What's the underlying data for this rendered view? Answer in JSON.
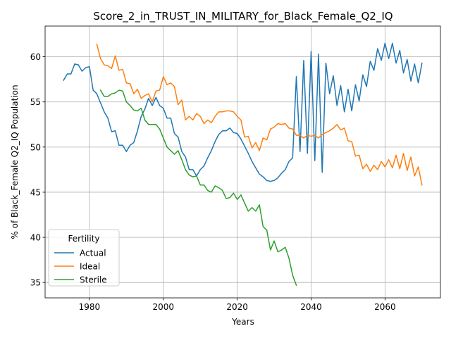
{
  "chart_data": {
    "type": "line",
    "title": "Score_2_in_TRUST_IN_MILITARY_for_Black_Female_Q2_IQ",
    "xlabel": "Years",
    "ylabel": "% of Black_Female Q2_IQ Population",
    "xlim": [
      1968,
      2075
    ],
    "ylim": [
      33.3,
      63.4
    ],
    "x_ticks": [
      1980,
      2000,
      2020,
      2040,
      2060
    ],
    "y_ticks": [
      35,
      40,
      45,
      50,
      55,
      60
    ],
    "grid": true,
    "legend": {
      "title": "Fertility",
      "placement": "lower-left"
    },
    "series": [
      {
        "name": "Actual",
        "color": "#1f77b4",
        "points": [
          [
            1973,
            57.4
          ],
          [
            1974,
            58.1
          ],
          [
            1975,
            58.1
          ],
          [
            1976,
            59.2
          ],
          [
            1977,
            59.1
          ],
          [
            1978,
            58.4
          ],
          [
            1979,
            58.8
          ],
          [
            1980,
            58.9
          ],
          [
            1981,
            56.3
          ],
          [
            1982,
            55.9
          ],
          [
            1983,
            54.9
          ],
          [
            1984,
            53.9
          ],
          [
            1985,
            53.2
          ],
          [
            1986,
            51.7
          ],
          [
            1987,
            51.8
          ],
          [
            1988,
            50.2
          ],
          [
            1989,
            50.2
          ],
          [
            1990,
            49.5
          ],
          [
            1991,
            50.2
          ],
          [
            1992,
            50.5
          ],
          [
            1993,
            51.8
          ],
          [
            1994,
            53.4
          ],
          [
            1995,
            54.2
          ],
          [
            1996,
            55.4
          ],
          [
            1997,
            54.6
          ],
          [
            1998,
            55.5
          ],
          [
            1999,
            54.6
          ],
          [
            2000,
            54.3
          ],
          [
            2001,
            53.2
          ],
          [
            2002,
            53.2
          ],
          [
            2003,
            51.5
          ],
          [
            2004,
            51.1
          ],
          [
            2005,
            49.5
          ],
          [
            2006,
            48.9
          ],
          [
            2007,
            47.5
          ],
          [
            2008,
            47.5
          ],
          [
            2009,
            46.8
          ],
          [
            2010,
            47.5
          ],
          [
            2011,
            47.9
          ],
          [
            2012,
            48.8
          ],
          [
            2013,
            49.6
          ],
          [
            2014,
            50.6
          ],
          [
            2015,
            51.4
          ],
          [
            2016,
            51.8
          ],
          [
            2017,
            51.8
          ],
          [
            2018,
            52.1
          ],
          [
            2019,
            51.6
          ],
          [
            2020,
            51.5
          ],
          [
            2021,
            50.9
          ],
          [
            2022,
            50.1
          ],
          [
            2023,
            49.3
          ],
          [
            2024,
            48.4
          ],
          [
            2025,
            47.7
          ],
          [
            2026,
            47.0
          ],
          [
            2027,
            46.7
          ],
          [
            2028,
            46.3
          ],
          [
            2029,
            46.2
          ],
          [
            2030,
            46.3
          ],
          [
            2031,
            46.6
          ],
          [
            2032,
            47.1
          ],
          [
            2033,
            47.5
          ],
          [
            2034,
            48.4
          ],
          [
            2035,
            48.8
          ],
          [
            2036,
            57.8
          ],
          [
            2037,
            49.5
          ],
          [
            2038,
            59.6
          ],
          [
            2039,
            49.3
          ],
          [
            2040,
            60.6
          ],
          [
            2041,
            48.5
          ],
          [
            2042,
            60.3
          ],
          [
            2043,
            47.2
          ],
          [
            2044,
            59.3
          ],
          [
            2045,
            55.9
          ],
          [
            2046,
            57.9
          ],
          [
            2047,
            54.6
          ],
          [
            2048,
            56.8
          ],
          [
            2049,
            53.9
          ],
          [
            2050,
            56.4
          ],
          [
            2051,
            54.0
          ],
          [
            2052,
            56.9
          ],
          [
            2053,
            55.1
          ],
          [
            2054,
            58.0
          ],
          [
            2055,
            56.7
          ],
          [
            2056,
            59.5
          ],
          [
            2057,
            58.5
          ],
          [
            2058,
            60.9
          ],
          [
            2059,
            59.6
          ],
          [
            2060,
            61.5
          ],
          [
            2061,
            59.8
          ],
          [
            2062,
            61.5
          ],
          [
            2063,
            59.3
          ],
          [
            2064,
            60.7
          ],
          [
            2065,
            58.2
          ],
          [
            2066,
            59.7
          ],
          [
            2067,
            57.3
          ],
          [
            2068,
            59.2
          ],
          [
            2069,
            57.1
          ],
          [
            2070,
            59.3
          ]
        ]
      },
      {
        "name": "Ideal",
        "color": "#ff7f0e",
        "points": [
          [
            1982,
            61.4
          ],
          [
            1983,
            59.8
          ],
          [
            1984,
            59.1
          ],
          [
            1985,
            59.0
          ],
          [
            1986,
            58.7
          ],
          [
            1987,
            60.1
          ],
          [
            1988,
            58.5
          ],
          [
            1989,
            58.6
          ],
          [
            1990,
            57.1
          ],
          [
            1991,
            57.0
          ],
          [
            1992,
            55.9
          ],
          [
            1993,
            56.4
          ],
          [
            1994,
            55.4
          ],
          [
            1995,
            55.7
          ],
          [
            1996,
            55.9
          ],
          [
            1997,
            55.0
          ],
          [
            1998,
            56.2
          ],
          [
            1999,
            56.3
          ],
          [
            2000,
            57.8
          ],
          [
            2001,
            56.9
          ],
          [
            2002,
            57.1
          ],
          [
            2003,
            56.7
          ],
          [
            2004,
            54.7
          ],
          [
            2005,
            55.2
          ],
          [
            2006,
            53.0
          ],
          [
            2007,
            53.4
          ],
          [
            2008,
            53.0
          ],
          [
            2009,
            53.7
          ],
          [
            2010,
            53.4
          ],
          [
            2011,
            52.6
          ],
          [
            2012,
            53.0
          ],
          [
            2013,
            52.7
          ],
          [
            2014,
            53.4
          ],
          [
            2015,
            53.9
          ],
          [
            2016,
            53.9
          ],
          [
            2017,
            54.0
          ],
          [
            2018,
            54.0
          ],
          [
            2019,
            53.9
          ],
          [
            2020,
            53.4
          ],
          [
            2021,
            53.0
          ],
          [
            2022,
            51.1
          ],
          [
            2023,
            51.2
          ],
          [
            2024,
            49.9
          ],
          [
            2025,
            50.5
          ],
          [
            2026,
            49.6
          ],
          [
            2027,
            51.0
          ],
          [
            2028,
            50.8
          ],
          [
            2029,
            52.0
          ],
          [
            2030,
            52.2
          ],
          [
            2031,
            52.6
          ],
          [
            2032,
            52.5
          ],
          [
            2033,
            52.6
          ],
          [
            2034,
            52.1
          ],
          [
            2035,
            52.0
          ],
          [
            2036,
            51.3
          ],
          [
            2037,
            51.3
          ],
          [
            2038,
            51.0
          ],
          [
            2039,
            51.3
          ],
          [
            2040,
            51.2
          ],
          [
            2041,
            51.3
          ],
          [
            2042,
            51.0
          ],
          [
            2043,
            51.4
          ],
          [
            2044,
            51.6
          ],
          [
            2045,
            51.8
          ],
          [
            2046,
            52.1
          ],
          [
            2047,
            52.5
          ],
          [
            2048,
            51.9
          ],
          [
            2049,
            52.1
          ],
          [
            2050,
            50.7
          ],
          [
            2051,
            50.6
          ],
          [
            2052,
            49.0
          ],
          [
            2053,
            49.1
          ],
          [
            2054,
            47.6
          ],
          [
            2055,
            48.1
          ],
          [
            2056,
            47.3
          ],
          [
            2057,
            48.0
          ],
          [
            2058,
            47.5
          ],
          [
            2059,
            48.4
          ],
          [
            2060,
            47.8
          ],
          [
            2061,
            48.6
          ],
          [
            2062,
            47.7
          ],
          [
            2063,
            49.1
          ],
          [
            2064,
            47.6
          ],
          [
            2065,
            49.3
          ],
          [
            2066,
            47.4
          ],
          [
            2067,
            48.9
          ],
          [
            2068,
            46.8
          ],
          [
            2069,
            47.8
          ],
          [
            2070,
            45.8
          ]
        ]
      },
      {
        "name": "Sterile",
        "color": "#2ca02c",
        "points": [
          [
            1983,
            56.3
          ],
          [
            1984,
            55.6
          ],
          [
            1985,
            55.6
          ],
          [
            1986,
            55.9
          ],
          [
            1987,
            56.0
          ],
          [
            1988,
            56.3
          ],
          [
            1989,
            56.2
          ],
          [
            1990,
            55.0
          ],
          [
            1991,
            54.6
          ],
          [
            1992,
            54.1
          ],
          [
            1993,
            54.0
          ],
          [
            1994,
            54.3
          ],
          [
            1995,
            53.0
          ],
          [
            1996,
            52.5
          ],
          [
            1997,
            52.5
          ],
          [
            1998,
            52.5
          ],
          [
            1999,
            52.0
          ],
          [
            2000,
            51.0
          ],
          [
            2001,
            50.0
          ],
          [
            2002,
            49.6
          ],
          [
            2003,
            49.2
          ],
          [
            2004,
            49.6
          ],
          [
            2005,
            48.6
          ],
          [
            2006,
            47.5
          ],
          [
            2007,
            46.9
          ],
          [
            2008,
            46.7
          ],
          [
            2009,
            46.8
          ],
          [
            2010,
            45.8
          ],
          [
            2011,
            45.8
          ],
          [
            2012,
            45.2
          ],
          [
            2013,
            45.0
          ],
          [
            2014,
            45.7
          ],
          [
            2015,
            45.5
          ],
          [
            2016,
            45.2
          ],
          [
            2017,
            44.3
          ],
          [
            2018,
            44.4
          ],
          [
            2019,
            44.9
          ],
          [
            2020,
            44.2
          ],
          [
            2021,
            44.7
          ],
          [
            2022,
            43.8
          ],
          [
            2023,
            42.9
          ],
          [
            2024,
            43.3
          ],
          [
            2025,
            42.9
          ],
          [
            2026,
            43.6
          ],
          [
            2027,
            41.2
          ],
          [
            2028,
            40.8
          ],
          [
            2029,
            38.6
          ],
          [
            2030,
            39.6
          ],
          [
            2031,
            38.4
          ],
          [
            2032,
            38.6
          ],
          [
            2033,
            38.9
          ],
          [
            2034,
            37.7
          ],
          [
            2035,
            35.8
          ],
          [
            2036,
            34.7
          ]
        ]
      }
    ]
  }
}
